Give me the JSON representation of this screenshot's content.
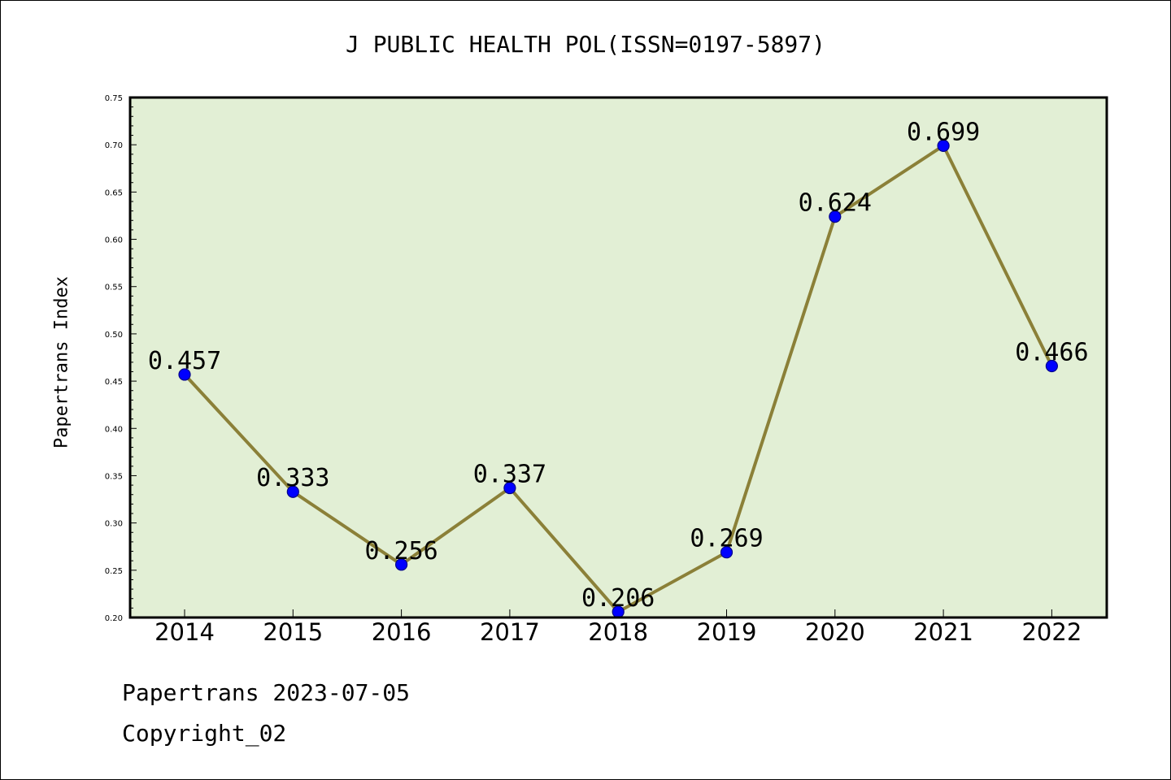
{
  "chart_data": {
    "type": "line",
    "title": "J PUBLIC HEALTH POL(ISSN=0197-5897)",
    "xlabel": "",
    "ylabel": "Papertrans Index",
    "categories": [
      "2014",
      "2015",
      "2016",
      "2017",
      "2018",
      "2019",
      "2020",
      "2021",
      "2022"
    ],
    "values": [
      0.457,
      0.333,
      0.256,
      0.337,
      0.206,
      0.269,
      0.624,
      0.699,
      0.466
    ],
    "data_labels": [
      "0.457",
      "0.333",
      "0.256",
      "0.337",
      "0.206",
      "0.269",
      "0.624",
      "0.699",
      "0.466"
    ],
    "ylim": [
      0.2,
      0.75
    ],
    "y_ticks": [
      "0.20",
      "0.25",
      "0.30",
      "0.35",
      "0.40",
      "0.45",
      "0.50",
      "0.55",
      "0.60",
      "0.65",
      "0.70",
      "0.75"
    ],
    "grid": false,
    "legend": "none",
    "colors": {
      "plot_background": "#e2efd5",
      "line": "#8b8038",
      "marker_fill": "#0000ff",
      "marker_edge": "#00008b"
    }
  },
  "footer": {
    "line1": "Papertrans 2023-07-05",
    "line2": "Copyright_02"
  }
}
